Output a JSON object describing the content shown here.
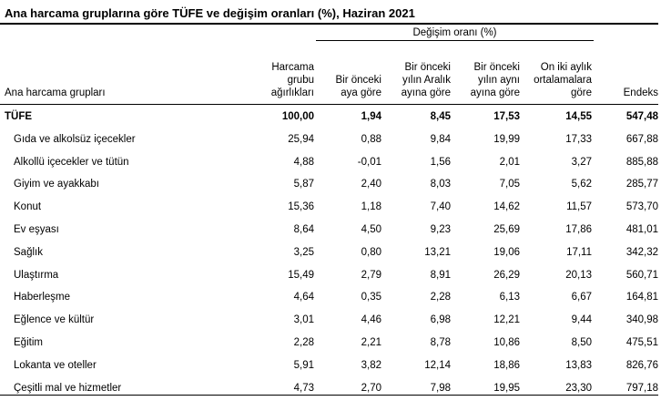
{
  "title": "Ana harcama gruplarına göre TÜFE ve değişim oranları (%), Haziran 2021",
  "header": {
    "group_label": "Değişim oranı (%)",
    "name_col": "Ana harcama grupları",
    "col1": "Harcama\ngrubu\nağırlıkları",
    "col2": "Bir önceki\naya göre",
    "col3": "Bir önceki\nyılın Aralık\nayına göre",
    "col4": "Bir önceki\nyılın aynı\nayına göre",
    "col5": "On iki aylık\nortalamalara\ngöre",
    "col6": "Endeks"
  },
  "rows": [
    {
      "name": "TÜFE",
      "v": [
        "100,00",
        "1,94",
        "8,45",
        "17,53",
        "14,55",
        "547,48"
      ],
      "bold": true
    },
    {
      "name": "Gıda ve alkolsüz içecekler",
      "v": [
        "25,94",
        "0,88",
        "9,84",
        "19,99",
        "17,33",
        "667,88"
      ]
    },
    {
      "name": "Alkollü içecekler ve tütün",
      "v": [
        "4,88",
        "-0,01",
        "1,56",
        "2,01",
        "3,27",
        "885,88"
      ]
    },
    {
      "name": "Giyim ve ayakkabı",
      "v": [
        "5,87",
        "2,40",
        "8,03",
        "7,05",
        "5,62",
        "285,77"
      ]
    },
    {
      "name": "Konut",
      "v": [
        "15,36",
        "1,18",
        "7,40",
        "14,62",
        "11,57",
        "573,70"
      ]
    },
    {
      "name": "Ev eşyası",
      "v": [
        "8,64",
        "4,50",
        "9,23",
        "25,69",
        "17,86",
        "481,01"
      ]
    },
    {
      "name": "Sağlık",
      "v": [
        "3,25",
        "0,80",
        "13,21",
        "19,06",
        "17,11",
        "342,32"
      ]
    },
    {
      "name": "Ulaştırma",
      "v": [
        "15,49",
        "2,79",
        "8,91",
        "26,29",
        "20,13",
        "560,71"
      ]
    },
    {
      "name": "Haberleşme",
      "v": [
        "4,64",
        "0,35",
        "2,28",
        "6,13",
        "6,67",
        "164,81"
      ]
    },
    {
      "name": "Eğlence ve kültür",
      "v": [
        "3,01",
        "4,46",
        "6,98",
        "12,21",
        "9,44",
        "340,98"
      ]
    },
    {
      "name": "Eğitim",
      "v": [
        "2,28",
        "2,21",
        "8,78",
        "10,86",
        "8,50",
        "475,51"
      ]
    },
    {
      "name": "Lokanta ve oteller",
      "v": [
        "5,91",
        "3,82",
        "12,14",
        "18,86",
        "13,83",
        "826,76"
      ]
    },
    {
      "name": "Çeşitli mal ve hizmetler",
      "v": [
        "4,73",
        "2,70",
        "7,98",
        "19,95",
        "23,30",
        "797,18"
      ]
    }
  ]
}
